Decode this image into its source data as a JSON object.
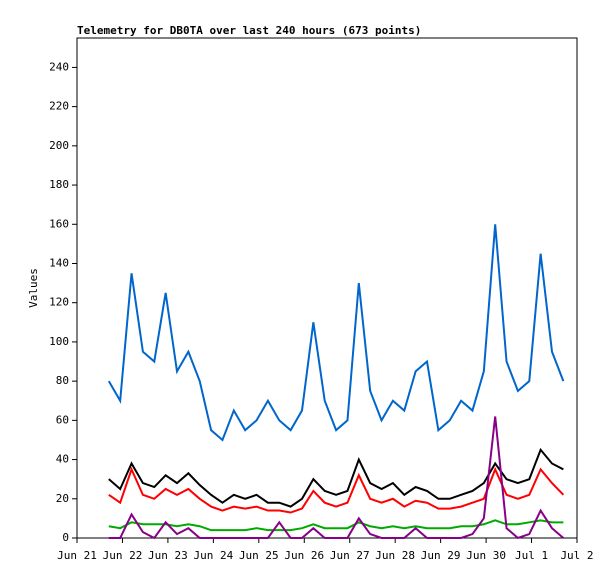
{
  "chart_data": {
    "type": "line",
    "title": "Telemetry for DB0TA over last 240 hours (673 points)",
    "y_label": "Values",
    "x": [
      0.7,
      0.95,
      1.2,
      1.45,
      1.7,
      1.95,
      2.2,
      2.45,
      2.7,
      2.95,
      3.2,
      3.45,
      3.7,
      3.95,
      4.2,
      4.45,
      4.7,
      4.95,
      5.2,
      5.45,
      5.7,
      5.95,
      6.2,
      6.45,
      6.7,
      6.95,
      7.2,
      7.45,
      7.7,
      7.95,
      8.2,
      8.45,
      8.7,
      8.95,
      9.2,
      9.45,
      9.7,
      9.95,
      10.2,
      10.45,
      10.7
    ],
    "series": [
      {
        "color": "#0066cc",
        "values": [
          80,
          70,
          135,
          95,
          90,
          125,
          85,
          95,
          80,
          55,
          50,
          65,
          55,
          60,
          70,
          60,
          55,
          65,
          110,
          70,
          55,
          60,
          130,
          75,
          60,
          70,
          65,
          85,
          90,
          55,
          60,
          70,
          65,
          85,
          160,
          90,
          75,
          80,
          145,
          95,
          80
        ]
      },
      {
        "color": "#000000",
        "values": [
          30,
          25,
          38,
          28,
          26,
          32,
          28,
          33,
          27,
          22,
          18,
          22,
          20,
          22,
          18,
          18,
          16,
          20,
          30,
          24,
          22,
          24,
          40,
          28,
          25,
          28,
          22,
          26,
          24,
          20,
          20,
          22,
          24,
          28,
          38,
          30,
          28,
          30,
          45,
          38,
          35
        ]
      },
      {
        "color": "#ff0000",
        "values": [
          22,
          18,
          35,
          22,
          20,
          25,
          22,
          25,
          20,
          16,
          14,
          16,
          15,
          16,
          14,
          14,
          13,
          15,
          24,
          18,
          16,
          18,
          32,
          20,
          18,
          20,
          16,
          19,
          18,
          15,
          15,
          16,
          18,
          20,
          35,
          22,
          20,
          22,
          35,
          28,
          22
        ]
      },
      {
        "color": "#00aa00",
        "values": [
          6,
          5,
          8,
          7,
          7,
          7,
          6,
          7,
          6,
          4,
          4,
          4,
          4,
          5,
          4,
          4,
          4,
          5,
          7,
          5,
          5,
          5,
          8,
          6,
          5,
          6,
          5,
          6,
          5,
          5,
          5,
          6,
          6,
          7,
          9,
          7,
          7,
          8,
          9,
          8,
          8
        ]
      },
      {
        "color": "#880088",
        "values": [
          0,
          0,
          12,
          3,
          0,
          8,
          2,
          5,
          0,
          0,
          0,
          0,
          0,
          0,
          0,
          8,
          0,
          0,
          5,
          0,
          0,
          0,
          10,
          2,
          0,
          0,
          0,
          5,
          0,
          0,
          0,
          0,
          2,
          10,
          62,
          5,
          0,
          2,
          14,
          5,
          0
        ]
      }
    ],
    "xlim": [
      0,
      11
    ],
    "xticks": [
      {
        "value": 0,
        "label": "Jun 21"
      },
      {
        "value": 1,
        "label": "Jun 22"
      },
      {
        "value": 2,
        "label": "Jun 23"
      },
      {
        "value": 3,
        "label": "Jun 24"
      },
      {
        "value": 4,
        "label": "Jun 25"
      },
      {
        "value": 5,
        "label": "Jun 26"
      },
      {
        "value": 6,
        "label": "Jun 27"
      },
      {
        "value": 7,
        "label": "Jun 28"
      },
      {
        "value": 8,
        "label": "Jun 29"
      },
      {
        "value": 9,
        "label": "Jun 30"
      },
      {
        "value": 10,
        "label": "Jul 1"
      },
      {
        "value": 11,
        "label": "Jul 2"
      }
    ],
    "ylim": [
      0,
      255
    ],
    "yticks": [
      0,
      20,
      40,
      60,
      80,
      100,
      120,
      140,
      160,
      180,
      200,
      220,
      240
    ],
    "grid": false
  }
}
